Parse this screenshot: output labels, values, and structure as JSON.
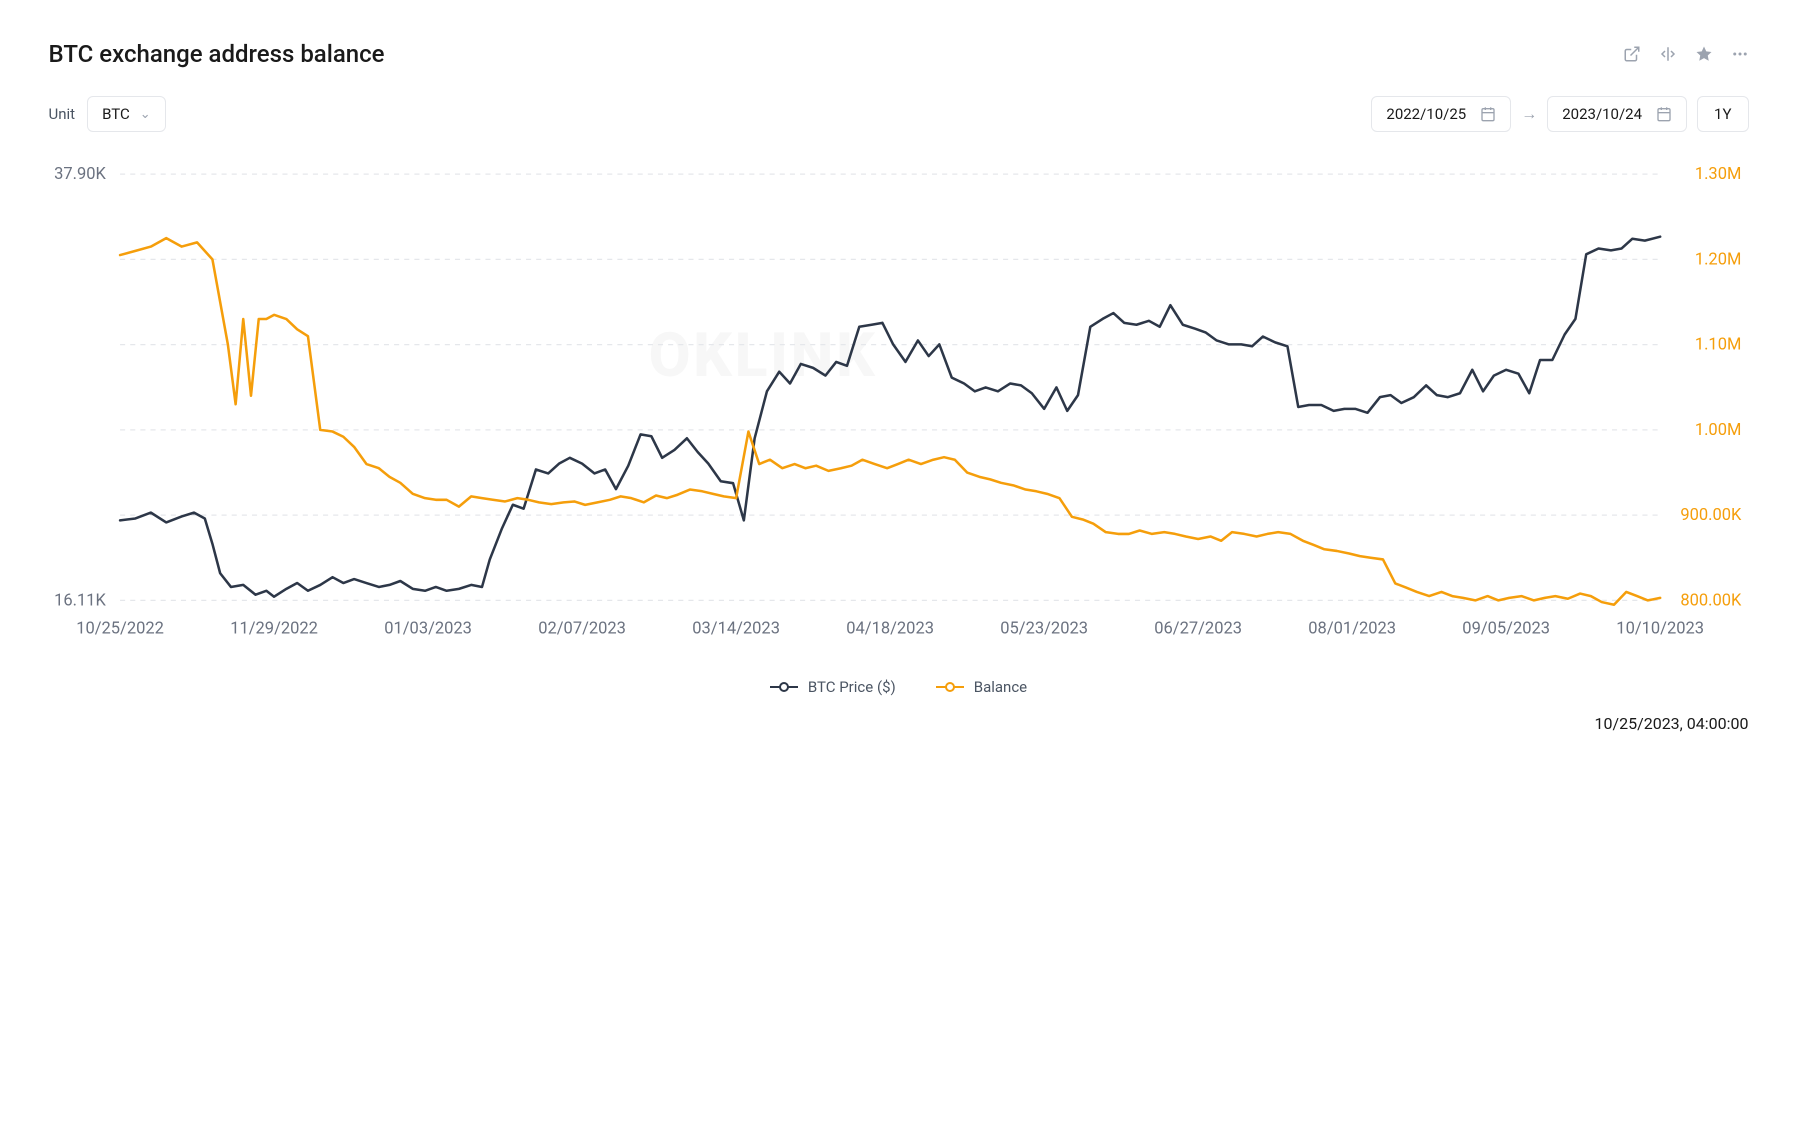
{
  "title": "BTC exchange address balance",
  "unit": {
    "label": "Unit",
    "value": "BTC"
  },
  "date_from": "2022/10/25",
  "date_to": "2023/10/24",
  "range_label": "1Y",
  "timestamp": "10/25/2023, 04:00:00",
  "watermark": "OKLINK",
  "chart": {
    "type": "line-dual-axis",
    "background_color": "#ffffff",
    "grid_color": "#e5e7eb",
    "left_axis": {
      "color": "#6b7280",
      "min": 16110,
      "max": 37900,
      "ticks": [
        {
          "value": 37900,
          "label": "37.90K"
        },
        {
          "value": 16110,
          "label": "16.11K"
        }
      ]
    },
    "right_axis": {
      "color": "#f59e0b",
      "min": 800000,
      "max": 1300000,
      "ticks": [
        {
          "value": 1300000,
          "label": "1.30M"
        },
        {
          "value": 1200000,
          "label": "1.20M"
        },
        {
          "value": 1100000,
          "label": "1.10M"
        },
        {
          "value": 1000000,
          "label": "1.00M"
        },
        {
          "value": 900000,
          "label": "900.00K"
        },
        {
          "value": 800000,
          "label": "800.00K"
        }
      ]
    },
    "x_axis": {
      "labels": [
        "10/25/2022",
        "11/29/2022",
        "01/03/2023",
        "02/07/2023",
        "03/14/2023",
        "04/18/2023",
        "05/23/2023",
        "06/27/2023",
        "08/01/2023",
        "09/05/2023",
        "10/10/2023"
      ]
    },
    "series": [
      {
        "name": "BTC Price ($)",
        "color": "#2d3748",
        "line_width": 2,
        "marker": "circle-hollow",
        "axis": "left",
        "data": [
          [
            0.0,
            20200
          ],
          [
            0.01,
            20300
          ],
          [
            0.02,
            20600
          ],
          [
            0.03,
            20100
          ],
          [
            0.04,
            20400
          ],
          [
            0.048,
            20600
          ],
          [
            0.055,
            20300
          ],
          [
            0.06,
            19000
          ],
          [
            0.065,
            17500
          ],
          [
            0.072,
            16800
          ],
          [
            0.08,
            16900
          ],
          [
            0.088,
            16400
          ],
          [
            0.095,
            16600
          ],
          [
            0.1,
            16300
          ],
          [
            0.108,
            16700
          ],
          [
            0.115,
            17000
          ],
          [
            0.122,
            16600
          ],
          [
            0.13,
            16900
          ],
          [
            0.138,
            17300
          ],
          [
            0.145,
            17000
          ],
          [
            0.152,
            17200
          ],
          [
            0.16,
            17000
          ],
          [
            0.168,
            16800
          ],
          [
            0.175,
            16900
          ],
          [
            0.182,
            17100
          ],
          [
            0.19,
            16700
          ],
          [
            0.198,
            16600
          ],
          [
            0.205,
            16800
          ],
          [
            0.212,
            16600
          ],
          [
            0.22,
            16700
          ],
          [
            0.228,
            16900
          ],
          [
            0.235,
            16800
          ],
          [
            0.24,
            18200
          ],
          [
            0.248,
            19800
          ],
          [
            0.255,
            21000
          ],
          [
            0.262,
            20800
          ],
          [
            0.27,
            22800
          ],
          [
            0.278,
            22600
          ],
          [
            0.285,
            23100
          ],
          [
            0.292,
            23400
          ],
          [
            0.3,
            23100
          ],
          [
            0.308,
            22600
          ],
          [
            0.315,
            22800
          ],
          [
            0.322,
            21800
          ],
          [
            0.33,
            23000
          ],
          [
            0.338,
            24600
          ],
          [
            0.345,
            24500
          ],
          [
            0.352,
            23400
          ],
          [
            0.36,
            23800
          ],
          [
            0.368,
            24400
          ],
          [
            0.375,
            23700
          ],
          [
            0.382,
            23100
          ],
          [
            0.39,
            22200
          ],
          [
            0.398,
            22100
          ],
          [
            0.405,
            20200
          ],
          [
            0.412,
            24400
          ],
          [
            0.42,
            26800
          ],
          [
            0.428,
            27800
          ],
          [
            0.435,
            27200
          ],
          [
            0.442,
            28200
          ],
          [
            0.45,
            28000
          ],
          [
            0.458,
            27600
          ],
          [
            0.465,
            28300
          ],
          [
            0.472,
            28100
          ],
          [
            0.48,
            30100
          ],
          [
            0.488,
            30200
          ],
          [
            0.495,
            30300
          ],
          [
            0.502,
            29200
          ],
          [
            0.51,
            28300
          ],
          [
            0.518,
            29400
          ],
          [
            0.525,
            28600
          ],
          [
            0.532,
            29200
          ],
          [
            0.54,
            27500
          ],
          [
            0.548,
            27200
          ],
          [
            0.555,
            26800
          ],
          [
            0.562,
            27000
          ],
          [
            0.57,
            26800
          ],
          [
            0.578,
            27200
          ],
          [
            0.585,
            27100
          ],
          [
            0.592,
            26700
          ],
          [
            0.6,
            25900
          ],
          [
            0.608,
            27000
          ],
          [
            0.615,
            25800
          ],
          [
            0.622,
            26600
          ],
          [
            0.63,
            30100
          ],
          [
            0.638,
            30500
          ],
          [
            0.645,
            30800
          ],
          [
            0.652,
            30300
          ],
          [
            0.66,
            30200
          ],
          [
            0.668,
            30400
          ],
          [
            0.675,
            30100
          ],
          [
            0.682,
            31200
          ],
          [
            0.69,
            30200
          ],
          [
            0.698,
            30000
          ],
          [
            0.705,
            29800
          ],
          [
            0.712,
            29400
          ],
          [
            0.72,
            29200
          ],
          [
            0.728,
            29200
          ],
          [
            0.735,
            29100
          ],
          [
            0.742,
            29600
          ],
          [
            0.75,
            29300
          ],
          [
            0.758,
            29100
          ],
          [
            0.765,
            26000
          ],
          [
            0.772,
            26100
          ],
          [
            0.78,
            26100
          ],
          [
            0.788,
            25800
          ],
          [
            0.795,
            25900
          ],
          [
            0.802,
            25900
          ],
          [
            0.81,
            25700
          ],
          [
            0.818,
            26500
          ],
          [
            0.825,
            26600
          ],
          [
            0.832,
            26200
          ],
          [
            0.84,
            26500
          ],
          [
            0.848,
            27100
          ],
          [
            0.855,
            26600
          ],
          [
            0.862,
            26500
          ],
          [
            0.87,
            26700
          ],
          [
            0.878,
            27900
          ],
          [
            0.885,
            26800
          ],
          [
            0.892,
            27600
          ],
          [
            0.9,
            27900
          ],
          [
            0.908,
            27700
          ],
          [
            0.915,
            26700
          ],
          [
            0.922,
            28400
          ],
          [
            0.93,
            28400
          ],
          [
            0.938,
            29700
          ],
          [
            0.945,
            30500
          ],
          [
            0.952,
            33800
          ],
          [
            0.96,
            34100
          ],
          [
            0.968,
            34000
          ],
          [
            0.975,
            34100
          ],
          [
            0.982,
            34600
          ],
          [
            0.99,
            34500
          ],
          [
            1.0,
            34700
          ]
        ]
      },
      {
        "name": "Balance",
        "color": "#f59e0b",
        "line_width": 2,
        "marker": "circle-hollow",
        "axis": "right",
        "data": [
          [
            0.0,
            1205000
          ],
          [
            0.01,
            1210000
          ],
          [
            0.02,
            1215000
          ],
          [
            0.03,
            1225000
          ],
          [
            0.04,
            1215000
          ],
          [
            0.05,
            1220000
          ],
          [
            0.06,
            1200000
          ],
          [
            0.07,
            1100000
          ],
          [
            0.075,
            1030000
          ],
          [
            0.08,
            1130000
          ],
          [
            0.085,
            1040000
          ],
          [
            0.09,
            1130000
          ],
          [
            0.095,
            1130000
          ],
          [
            0.1,
            1135000
          ],
          [
            0.108,
            1130000
          ],
          [
            0.115,
            1118000
          ],
          [
            0.122,
            1110000
          ],
          [
            0.13,
            1000000
          ],
          [
            0.138,
            998000
          ],
          [
            0.145,
            992000
          ],
          [
            0.152,
            980000
          ],
          [
            0.16,
            960000
          ],
          [
            0.168,
            955000
          ],
          [
            0.175,
            945000
          ],
          [
            0.182,
            938000
          ],
          [
            0.19,
            925000
          ],
          [
            0.198,
            920000
          ],
          [
            0.205,
            918000
          ],
          [
            0.212,
            918000
          ],
          [
            0.22,
            910000
          ],
          [
            0.228,
            922000
          ],
          [
            0.235,
            920000
          ],
          [
            0.242,
            918000
          ],
          [
            0.25,
            916000
          ],
          [
            0.258,
            920000
          ],
          [
            0.265,
            918000
          ],
          [
            0.272,
            915000
          ],
          [
            0.28,
            913000
          ],
          [
            0.288,
            915000
          ],
          [
            0.295,
            916000
          ],
          [
            0.302,
            912000
          ],
          [
            0.31,
            915000
          ],
          [
            0.318,
            918000
          ],
          [
            0.325,
            922000
          ],
          [
            0.332,
            920000
          ],
          [
            0.34,
            915000
          ],
          [
            0.348,
            923000
          ],
          [
            0.355,
            920000
          ],
          [
            0.362,
            924000
          ],
          [
            0.37,
            930000
          ],
          [
            0.378,
            928000
          ],
          [
            0.385,
            925000
          ],
          [
            0.392,
            922000
          ],
          [
            0.4,
            920000
          ],
          [
            0.408,
            998000
          ],
          [
            0.415,
            960000
          ],
          [
            0.422,
            965000
          ],
          [
            0.43,
            955000
          ],
          [
            0.438,
            960000
          ],
          [
            0.445,
            955000
          ],
          [
            0.452,
            958000
          ],
          [
            0.46,
            952000
          ],
          [
            0.468,
            955000
          ],
          [
            0.475,
            958000
          ],
          [
            0.482,
            965000
          ],
          [
            0.49,
            960000
          ],
          [
            0.498,
            955000
          ],
          [
            0.505,
            960000
          ],
          [
            0.512,
            965000
          ],
          [
            0.52,
            960000
          ],
          [
            0.528,
            965000
          ],
          [
            0.535,
            968000
          ],
          [
            0.542,
            965000
          ],
          [
            0.55,
            950000
          ],
          [
            0.558,
            945000
          ],
          [
            0.565,
            942000
          ],
          [
            0.572,
            938000
          ],
          [
            0.58,
            935000
          ],
          [
            0.588,
            930000
          ],
          [
            0.595,
            928000
          ],
          [
            0.602,
            925000
          ],
          [
            0.61,
            920000
          ],
          [
            0.618,
            898000
          ],
          [
            0.625,
            895000
          ],
          [
            0.632,
            890000
          ],
          [
            0.64,
            880000
          ],
          [
            0.648,
            878000
          ],
          [
            0.655,
            878000
          ],
          [
            0.662,
            882000
          ],
          [
            0.67,
            878000
          ],
          [
            0.678,
            880000
          ],
          [
            0.685,
            878000
          ],
          [
            0.692,
            875000
          ],
          [
            0.7,
            872000
          ],
          [
            0.708,
            875000
          ],
          [
            0.715,
            870000
          ],
          [
            0.722,
            880000
          ],
          [
            0.73,
            878000
          ],
          [
            0.738,
            875000
          ],
          [
            0.745,
            878000
          ],
          [
            0.752,
            880000
          ],
          [
            0.76,
            878000
          ],
          [
            0.768,
            870000
          ],
          [
            0.775,
            865000
          ],
          [
            0.782,
            860000
          ],
          [
            0.79,
            858000
          ],
          [
            0.798,
            855000
          ],
          [
            0.805,
            852000
          ],
          [
            0.812,
            850000
          ],
          [
            0.82,
            848000
          ],
          [
            0.828,
            820000
          ],
          [
            0.835,
            815000
          ],
          [
            0.842,
            810000
          ],
          [
            0.85,
            805000
          ],
          [
            0.858,
            810000
          ],
          [
            0.865,
            805000
          ],
          [
            0.872,
            803000
          ],
          [
            0.88,
            800000
          ],
          [
            0.888,
            805000
          ],
          [
            0.895,
            800000
          ],
          [
            0.902,
            803000
          ],
          [
            0.91,
            805000
          ],
          [
            0.918,
            800000
          ],
          [
            0.925,
            803000
          ],
          [
            0.932,
            805000
          ],
          [
            0.94,
            802000
          ],
          [
            0.948,
            808000
          ],
          [
            0.955,
            805000
          ],
          [
            0.962,
            798000
          ],
          [
            0.97,
            795000
          ],
          [
            0.978,
            810000
          ],
          [
            0.985,
            805000
          ],
          [
            0.992,
            800000
          ],
          [
            1.0,
            803000
          ]
        ]
      }
    ]
  },
  "legend": [
    {
      "label": "BTC Price ($)",
      "color": "#2d3748"
    },
    {
      "label": "Balance",
      "color": "#f59e0b"
    }
  ]
}
